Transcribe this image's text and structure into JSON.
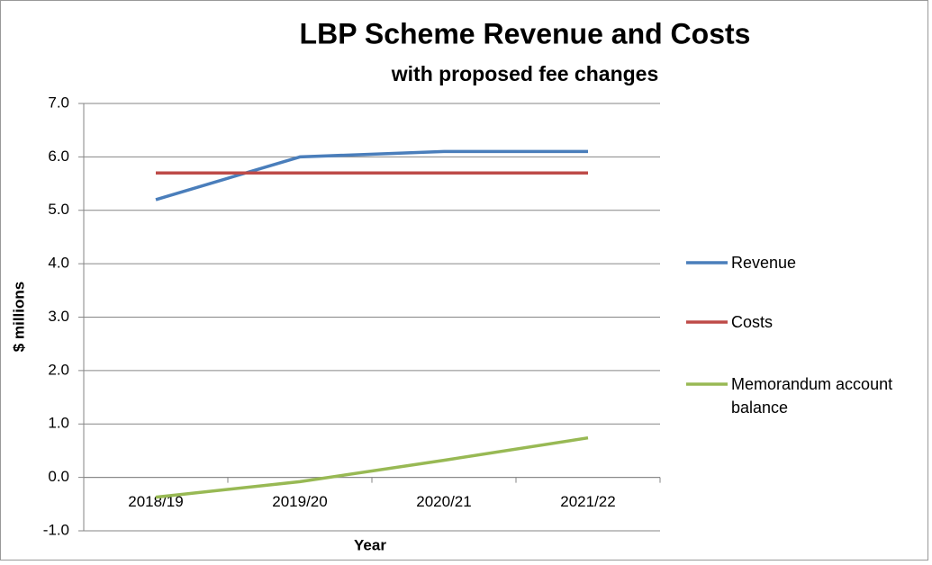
{
  "chart_data": {
    "type": "line",
    "title": "LBP Scheme Revenue and Costs",
    "subtitle": "with proposed fee changes",
    "x_label": "Year",
    "y_label": "$ millions",
    "categories": [
      "2018/19",
      "2019/20",
      "2020/21",
      "2021/22"
    ],
    "series": [
      {
        "name": "Revenue",
        "color": "#4a7ebb",
        "values": [
          5.2,
          6.0,
          6.1,
          6.1
        ]
      },
      {
        "name": "Costs",
        "color": "#be4b48",
        "values": [
          5.7,
          5.7,
          5.7,
          5.7
        ]
      },
      {
        "name": "Memorandum account balance",
        "color": "#98b954",
        "values": [
          -0.37,
          -0.08,
          0.32,
          0.74
        ]
      }
    ],
    "ylim": [
      -1,
      7
    ],
    "yticks": [
      {
        "value": -1,
        "label": "-1.0"
      },
      {
        "value": 0,
        "label": "0.0"
      },
      {
        "value": 1,
        "label": "1.0"
      },
      {
        "value": 2,
        "label": "2.0"
      },
      {
        "value": 3,
        "label": "3.0"
      },
      {
        "value": 4,
        "label": "4.0"
      },
      {
        "value": 5,
        "label": "5.0"
      },
      {
        "value": 6,
        "label": "6.0"
      },
      {
        "value": 7,
        "label": "7.0"
      }
    ],
    "grid": true,
    "legend": "right"
  }
}
